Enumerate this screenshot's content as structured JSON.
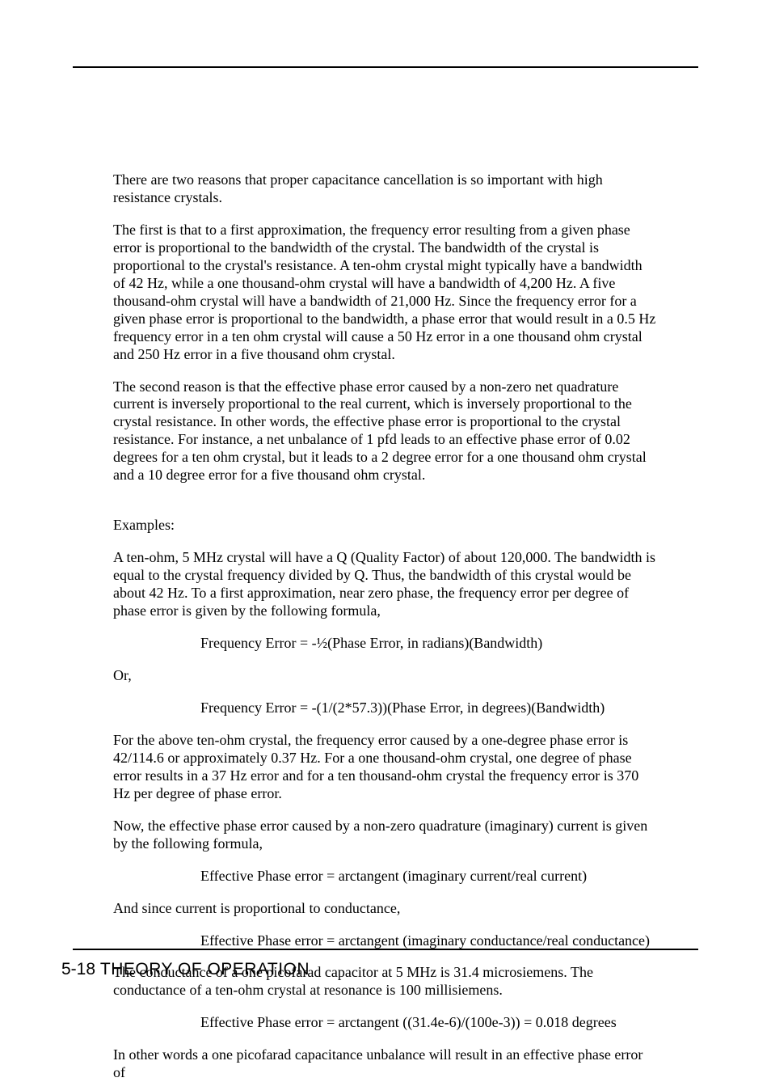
{
  "paragraphs": {
    "p1": "There are two reasons that proper capacitance cancellation is so important with high resistance crystals.",
    "p2": "The first is that to a first approximation, the frequency error resulting from a given phase error is proportional to the bandwidth of the crystal.  The bandwidth of the crystal is proportional to the crystal's resistance.  A ten-ohm crystal might typically have a bandwidth of 42 Hz, while a one thousand-ohm crystal will have a bandwidth of 4,200 Hz. A five thousand-ohm crystal will have a bandwidth of 21,000 Hz.  Since the frequency error for a given phase error is proportional to the bandwidth, a phase error that would result in a 0.5 Hz frequency error in a ten ohm crystal will cause a 50 Hz error in a one thousand ohm crystal and 250 Hz error in a five thousand ohm crystal.",
    "p3": "The second reason is that the effective phase error caused by a non-zero net quadrature current is inversely proportional to the real current, which is inversely proportional to the crystal resistance.  In other words, the effective phase error is proportional to the crystal resistance.  For instance, a net unbalance of 1 pfd leads to an effective phase error of 0.02 degrees for a ten ohm crystal, but it leads to a 2 degree error for a one thousand ohm crystal and a 10 degree error for a five thousand ohm crystal.",
    "examples_label": "Examples:",
    "p4": "A ten-ohm, 5 MHz crystal will have a Q (Quality Factor) of about 120,000.  The bandwidth is equal to the crystal frequency divided by Q.  Thus, the bandwidth of this crystal would be about 42 Hz.  To a first approximation, near zero phase, the frequency error per degree of phase error is given by the following formula,",
    "formula1": "Frequency Error = -½(Phase Error, in radians)(Bandwidth)",
    "or_label": "Or,",
    "formula2": "Frequency Error = -(1/(2*57.3))(Phase Error, in degrees)(Bandwidth)",
    "p5": "For the above ten-ohm crystal, the frequency error caused by a one-degree phase error is 42/114.6 or approximately 0.37 Hz.  For a one thousand-ohm crystal, one degree of phase error results in a 37 Hz error and for a ten thousand-ohm crystal the frequency error is 370 Hz per degree of phase error.",
    "p6": "Now, the effective phase error caused by a non-zero quadrature (imaginary) current is given by the following formula,",
    "formula3": "Effective Phase error = arctangent (imaginary current/real current)",
    "p7": "And since current is proportional to conductance,",
    "formula4": "Effective Phase error = arctangent (imaginary conductance/real conductance)",
    "p8": "The conductance of a one picofarad capacitor at 5 MHz is 31.4 microsiemens.  The conductance of a ten-ohm crystal at resonance is 100 millisiemens.",
    "formula5": "Effective Phase error = arctangent ((31.4e-6)/(100e-3)) = 0.018 degrees",
    "p9": "In other words a one picofarad capacitance unbalance will result in an effective phase error of"
  },
  "footer": {
    "page_number": "5-18",
    "section_title": "THEORY OF OPERATION"
  }
}
